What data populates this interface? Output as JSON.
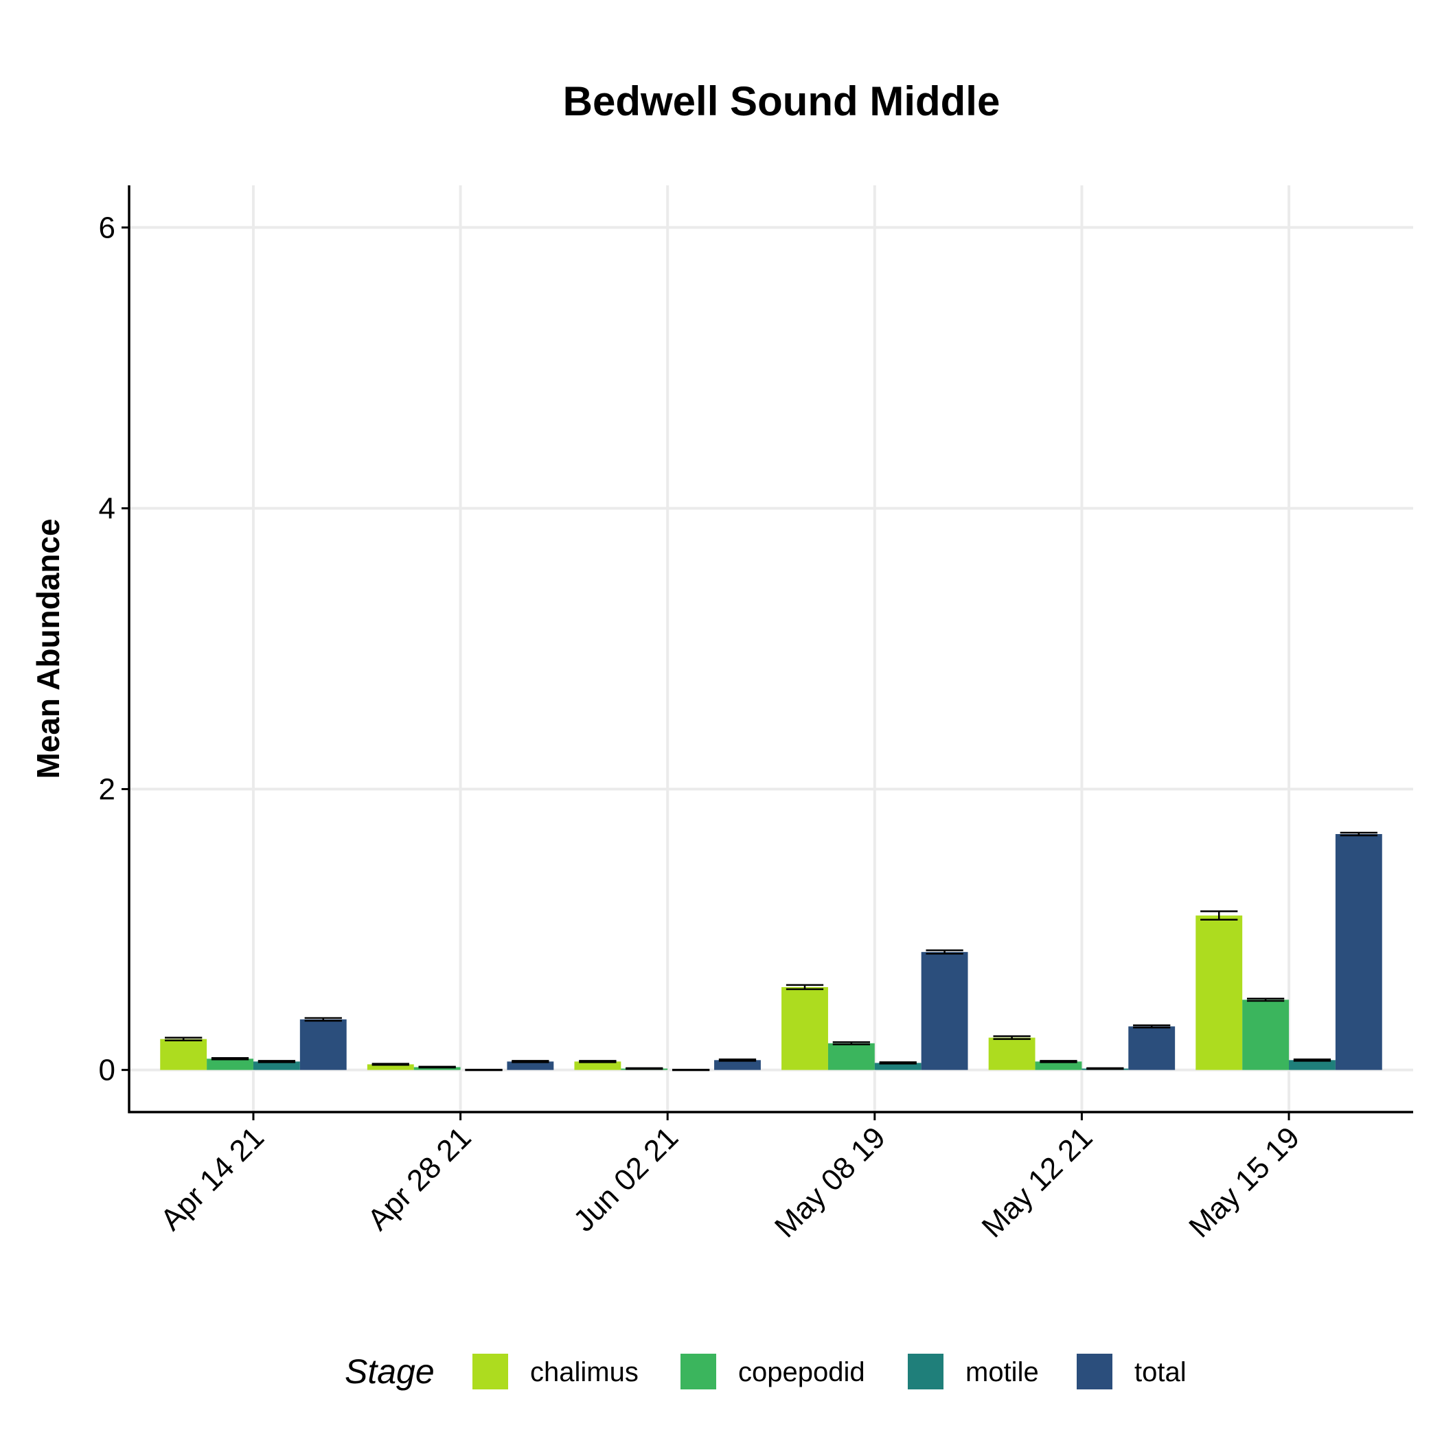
{
  "chart_data": {
    "type": "bar",
    "title": "Bedwell Sound Middle",
    "xlabel": "",
    "ylabel": "Mean Abundance",
    "categories": [
      "Apr 14 21",
      "Apr 28 21",
      "Jun 02 21",
      "May 08 19",
      "May 12 21",
      "May 15 19"
    ],
    "ylim": [
      -0.3,
      6.3
    ],
    "yticks": [
      0,
      2,
      4,
      6
    ],
    "grid": true,
    "legend": {
      "title": "Stage",
      "position": "bottom"
    },
    "series": [
      {
        "name": "chalimus",
        "color": "#ADDC1F",
        "values": [
          0.22,
          0.04,
          0.06,
          0.59,
          0.23,
          1.1
        ],
        "errors": [
          0.01,
          0.004,
          0.005,
          0.015,
          0.01,
          0.03
        ]
      },
      {
        "name": "copepodid",
        "color": "#3BB55D",
        "values": [
          0.08,
          0.02,
          0.01,
          0.19,
          0.06,
          0.5
        ],
        "errors": [
          0.005,
          0.003,
          0.003,
          0.008,
          0.005,
          0.008
        ]
      },
      {
        "name": "motile",
        "color": "#1F7F7A",
        "values": [
          0.06,
          0.0,
          0.0,
          0.05,
          0.01,
          0.07
        ],
        "errors": [
          0.005,
          0.002,
          0.002,
          0.005,
          0.003,
          0.005
        ]
      },
      {
        "name": "total",
        "color": "#2B4E7C",
        "values": [
          0.36,
          0.06,
          0.07,
          0.84,
          0.31,
          1.68
        ],
        "errors": [
          0.01,
          0.005,
          0.005,
          0.012,
          0.008,
          0.01
        ]
      }
    ]
  }
}
